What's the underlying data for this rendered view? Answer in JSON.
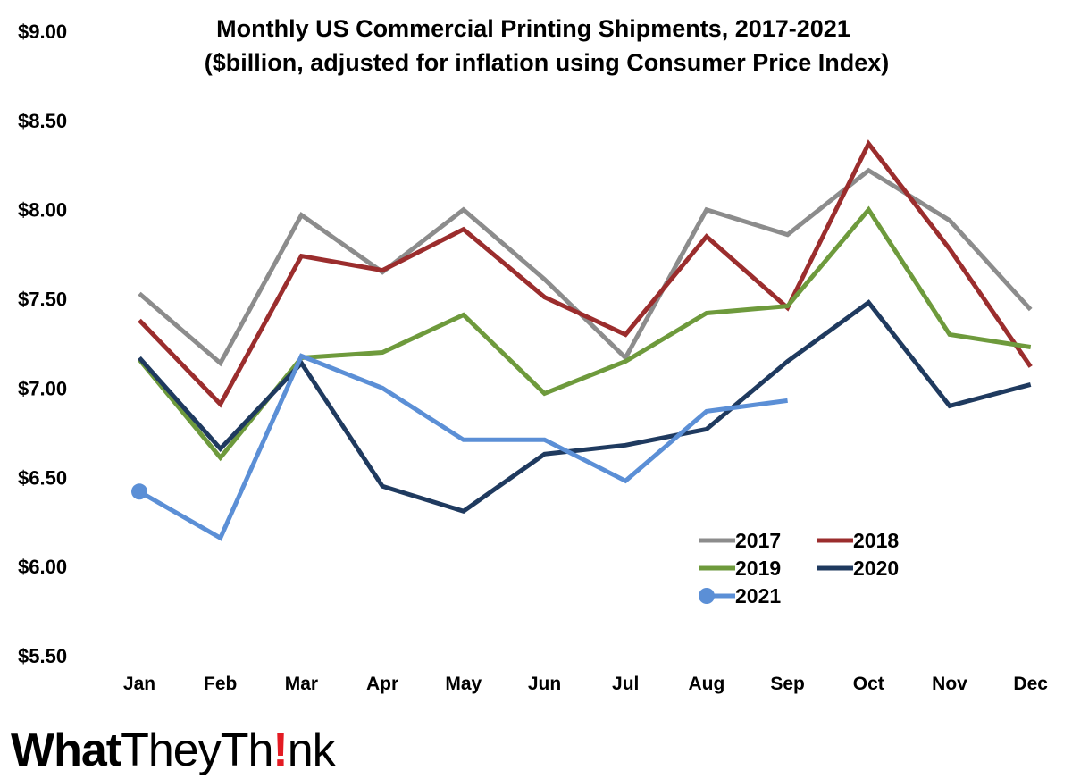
{
  "chart_data": {
    "type": "line",
    "title": "Monthly US Commercial Printing Shipments, 2017-2021",
    "subtitle": "($billion, adjusted for inflation using Consumer Price Index)",
    "categories": [
      "Jan",
      "Feb",
      "Mar",
      "Apr",
      "May",
      "Jun",
      "Jul",
      "Aug",
      "Sep",
      "Oct",
      "Nov",
      "Dec"
    ],
    "ylim": [
      5.5,
      9.0
    ],
    "yticks": [
      5.5,
      6.0,
      6.5,
      7.0,
      7.5,
      8.0,
      8.5,
      9.0
    ],
    "ytick_labels": [
      "$5.50",
      "$6.00",
      "$6.50",
      "$7.00",
      "$7.50",
      "$8.00",
      "$8.50",
      "$9.00"
    ],
    "grid": false,
    "legend_position": "bottom-right",
    "series": [
      {
        "name": "2017",
        "color": "#8c8c8c",
        "values": [
          7.53,
          7.14,
          7.97,
          7.65,
          8.0,
          7.61,
          7.17,
          8.0,
          7.86,
          8.22,
          7.94,
          7.44
        ]
      },
      {
        "name": "2018",
        "color": "#9b2d2d",
        "values": [
          7.38,
          6.91,
          7.74,
          7.66,
          7.89,
          7.51,
          7.3,
          7.85,
          7.45,
          8.37,
          7.78,
          7.12
        ]
      },
      {
        "name": "2019",
        "color": "#6e9a3c",
        "values": [
          7.16,
          6.61,
          7.17,
          7.2,
          7.41,
          6.97,
          7.15,
          7.42,
          7.46,
          8.0,
          7.3,
          7.23
        ]
      },
      {
        "name": "2020",
        "color": "#1f3a5f",
        "values": [
          7.17,
          6.66,
          7.14,
          6.45,
          6.31,
          6.63,
          6.68,
          6.77,
          7.15,
          7.48,
          6.9,
          7.02
        ]
      },
      {
        "name": "2021",
        "color": "#5b8fd6",
        "values": [
          6.42,
          6.16,
          7.18,
          7.0,
          6.71,
          6.71,
          6.48,
          6.87,
          6.93,
          null,
          null,
          null
        ],
        "first_point_marker": true
      }
    ]
  },
  "brand": {
    "logo_what": "What",
    "logo_they": "They",
    "logo_th": "Th",
    "logo_bang": "!",
    "logo_nk": "nk",
    "bang_color": "#e31b23"
  }
}
